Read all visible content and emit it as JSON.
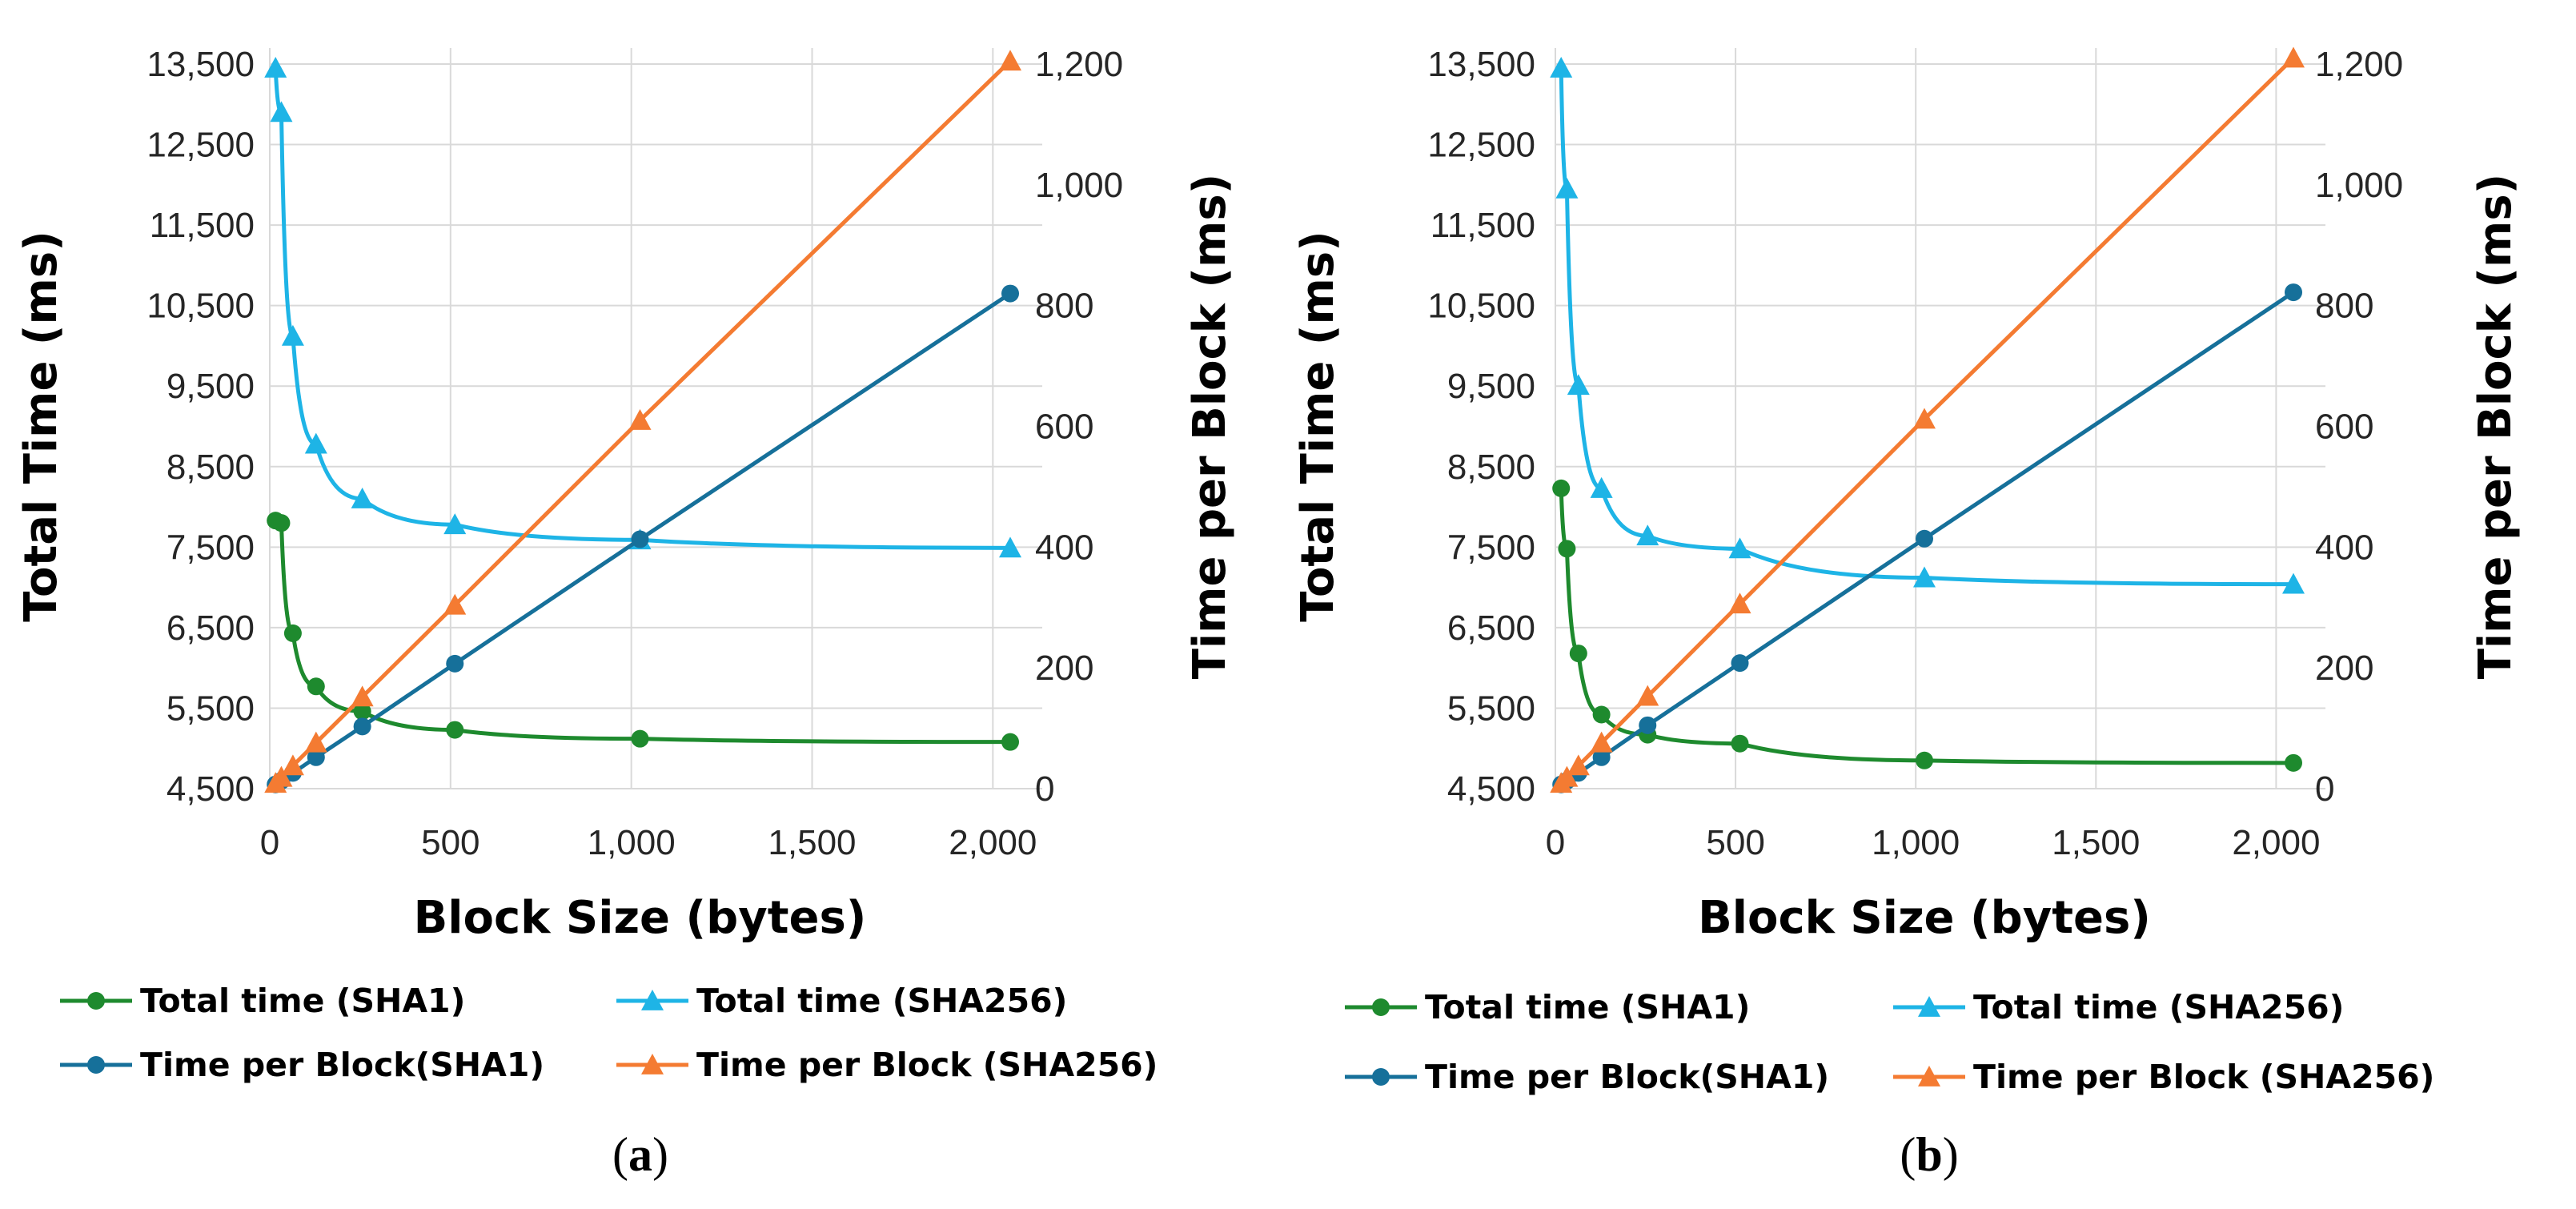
{
  "colors": {
    "sha1_total": "#1e8a2e",
    "sha256_total": "#1eb4e6",
    "sha1_block": "#16709a",
    "sha256_block": "#f47b32",
    "grid": "#d9d9d9"
  },
  "chart_data": [
    {
      "type": "line",
      "panel_label": "a",
      "xlabel": "Block Size (bytes)",
      "ylabel": "Total Time (ms)",
      "y2label": "Time per Block (ms)",
      "xlim": [
        0,
        2048
      ],
      "ylim": [
        4500,
        13500
      ],
      "y2lim": [
        0,
        1200
      ],
      "x_ticks": [
        0,
        500,
        1000,
        1500,
        2000
      ],
      "x_tick_labels": [
        "0",
        "500",
        "1,000",
        "1,500",
        "2,000"
      ],
      "y_ticks": [
        4500,
        5500,
        6500,
        7500,
        8500,
        9500,
        10500,
        11500,
        12500,
        13500
      ],
      "y_tick_labels": [
        "4,500",
        "5,500",
        "6,500",
        "7,500",
        "8,500",
        "9,500",
        "10,500",
        "11,500",
        "12,500",
        "13,500"
      ],
      "y2_ticks": [
        0,
        200,
        400,
        600,
        800,
        1000,
        1200
      ],
      "y2_tick_labels": [
        "0",
        "200",
        "400",
        "600",
        "800",
        "1,000",
        "1,200"
      ],
      "legend_placement": "bottom",
      "series": [
        {
          "name": "Total time (SHA1)",
          "axis": "left",
          "marker": "circle",
          "color_key": "sha1_total",
          "x": [
            16,
            32,
            64,
            128,
            256,
            512,
            1024,
            2048
          ],
          "values": [
            7830,
            7800,
            6430,
            5770,
            5460,
            5230,
            5120,
            5080
          ]
        },
        {
          "name": "Total time (SHA256)",
          "axis": "left",
          "marker": "triangle",
          "color_key": "sha256_total",
          "x": [
            16,
            32,
            64,
            128,
            256,
            512,
            1024,
            2048
          ],
          "values": [
            13450,
            12900,
            10120,
            8780,
            8100,
            7780,
            7590,
            7490
          ]
        },
        {
          "name": "Time per Block(SHA1)",
          "axis": "right",
          "marker": "circle",
          "color_key": "sha1_block",
          "x": [
            16,
            32,
            64,
            128,
            256,
            512,
            1024,
            2048
          ],
          "values": [
            7,
            13,
            26,
            52,
            103,
            207,
            413,
            820
          ]
        },
        {
          "name": "Time per Block (SHA256)",
          "axis": "right",
          "marker": "triangle",
          "color_key": "sha256_block",
          "x": [
            16,
            32,
            64,
            128,
            256,
            512,
            1024,
            2048
          ],
          "values": [
            9,
            19,
            38,
            76,
            152,
            304,
            610,
            1205
          ]
        }
      ]
    },
    {
      "type": "line",
      "panel_label": "b",
      "xlabel": "Block Size (bytes)",
      "ylabel": "Total Time (ms)",
      "y2label": "Time per Block (ms)",
      "xlim": [
        0,
        2048
      ],
      "ylim": [
        4500,
        13500
      ],
      "y2lim": [
        0,
        1200
      ],
      "x_ticks": [
        0,
        500,
        1000,
        1500,
        2000
      ],
      "x_tick_labels": [
        "0",
        "500",
        "1,000",
        "1,500",
        "2,000"
      ],
      "y_ticks": [
        4500,
        5500,
        6500,
        7500,
        8500,
        9500,
        10500,
        11500,
        12500,
        13500
      ],
      "y_tick_labels": [
        "4,500",
        "5,500",
        "6,500",
        "7,500",
        "8,500",
        "9,500",
        "10,500",
        "11,500",
        "12,500",
        "13,500"
      ],
      "y2_ticks": [
        0,
        200,
        400,
        600,
        800,
        1000,
        1200
      ],
      "y2_tick_labels": [
        "0",
        "200",
        "400",
        "600",
        "800",
        "1,000",
        "1,200"
      ],
      "legend_placement": "bottom",
      "series": [
        {
          "name": "Total time (SHA1)",
          "axis": "left",
          "marker": "circle",
          "color_key": "sha1_total",
          "x": [
            16,
            32,
            64,
            128,
            256,
            512,
            1024,
            2048
          ],
          "values": [
            8230,
            7480,
            6180,
            5420,
            5170,
            5060,
            4850,
            4820
          ]
        },
        {
          "name": "Total time (SHA256)",
          "axis": "left",
          "marker": "triangle",
          "color_key": "sha256_total",
          "x": [
            16,
            32,
            64,
            128,
            256,
            512,
            1024,
            2048
          ],
          "values": [
            13450,
            11950,
            9510,
            8230,
            7640,
            7480,
            7120,
            7040
          ]
        },
        {
          "name": "Time per Block(SHA1)",
          "axis": "right",
          "marker": "circle",
          "color_key": "sha1_block",
          "x": [
            16,
            32,
            64,
            128,
            256,
            512,
            1024,
            2048
          ],
          "values": [
            7,
            13,
            26,
            52,
            105,
            208,
            414,
            822
          ]
        },
        {
          "name": "Time per Block (SHA256)",
          "axis": "right",
          "marker": "triangle",
          "color_key": "sha256_block",
          "x": [
            16,
            32,
            64,
            128,
            256,
            512,
            1024,
            2048
          ],
          "values": [
            9,
            19,
            38,
            76,
            153,
            306,
            612,
            1210
          ]
        }
      ]
    }
  ]
}
